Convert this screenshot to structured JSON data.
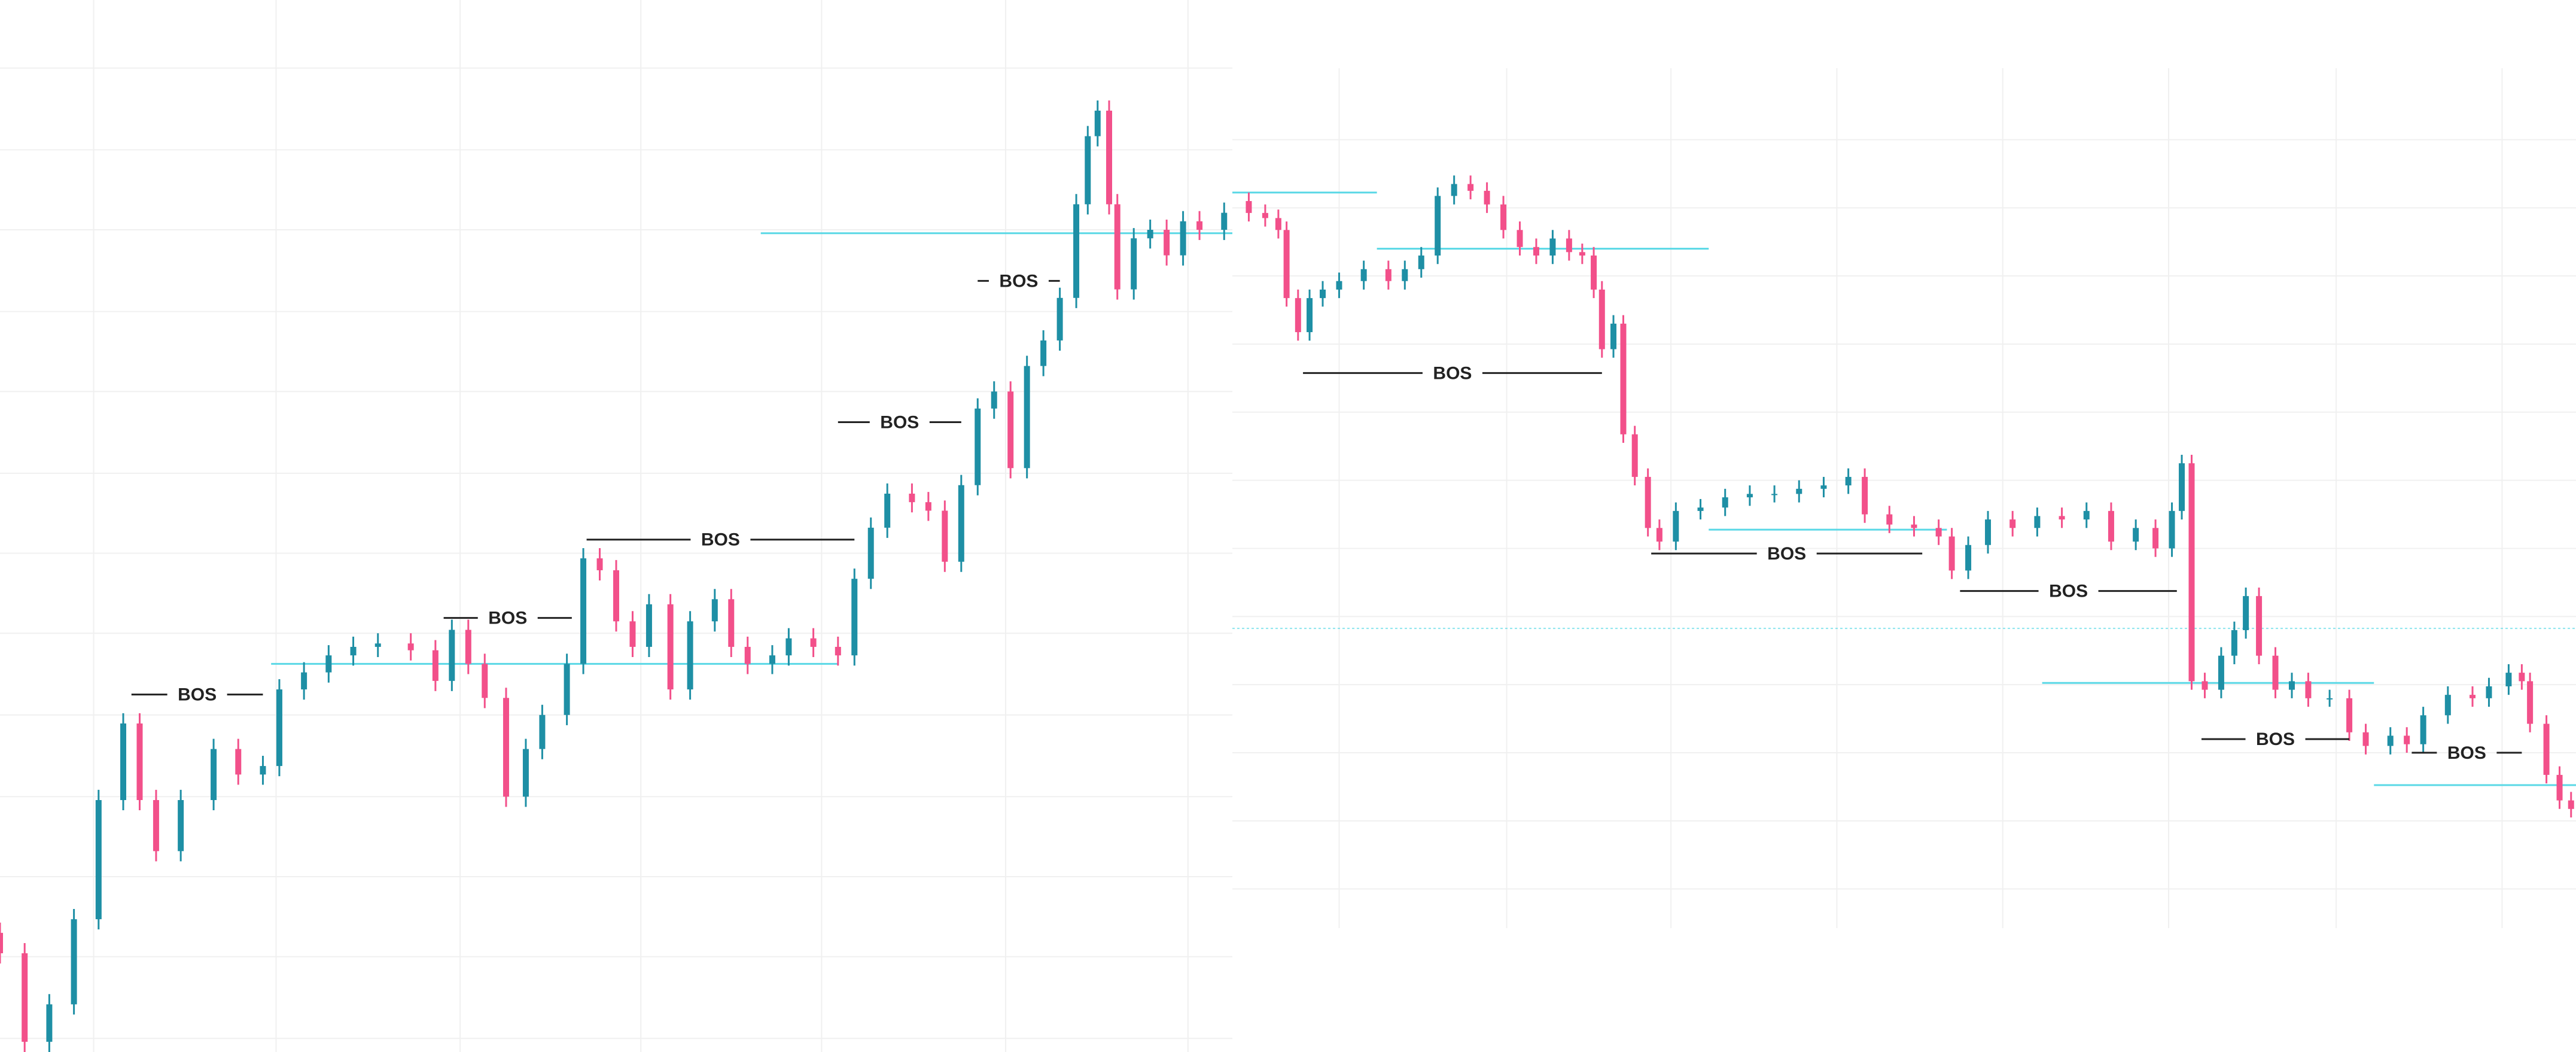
{
  "chart_data": [
    {
      "type": "candlestick",
      "up_color": "#1e8fa5",
      "down_color": "#f2508a",
      "level_color": "#5ad8e6",
      "grid": true,
      "xlim": [
        0,
        750
      ],
      "ylim": [
        0,
        618
      ],
      "xticks": [
        57,
        168,
        280,
        390,
        500,
        612,
        723
      ],
      "yticks": [
        578,
        530,
        483,
        435,
        388,
        340,
        293,
        246,
        198,
        150,
        103,
        56,
        8
      ],
      "x": [
        0,
        15,
        30,
        45,
        60,
        75,
        85,
        95,
        110,
        130,
        145,
        160,
        170,
        185,
        200,
        215,
        230,
        250,
        265,
        275,
        285,
        295,
        308,
        320,
        330,
        345,
        355,
        365,
        375,
        385,
        395,
        408,
        420,
        435,
        445,
        455,
        470,
        480,
        495,
        510,
        520,
        530,
        540,
        555,
        565,
        575,
        585,
        595,
        605,
        615,
        625,
        635,
        645,
        655,
        662,
        668,
        675,
        680,
        690,
        700,
        710,
        720,
        730,
        745
      ],
      "open": [
        70,
        58,
        6,
        28,
        78,
        148,
        193,
        148,
        118,
        148,
        178,
        163,
        168,
        213,
        223,
        233,
        238,
        240,
        236,
        218,
        248,
        228,
        208,
        150,
        178,
        198,
        228,
        290,
        283,
        253,
        238,
        263,
        213,
        253,
        266,
        238,
        228,
        233,
        243,
        238,
        233,
        278,
        308,
        328,
        323,
        318,
        288,
        333,
        378,
        388,
        343,
        403,
        418,
        443,
        498,
        538,
        553,
        498,
        448,
        478,
        483,
        468,
        488,
        483
      ],
      "high": [
        76,
        64,
        34,
        84,
        154,
        199,
        199,
        154,
        154,
        184,
        184,
        174,
        219,
        229,
        239,
        244,
        246,
        246,
        242,
        254,
        254,
        234,
        214,
        184,
        204,
        234,
        296,
        296,
        289,
        259,
        269,
        269,
        259,
        272,
        272,
        244,
        239,
        249,
        249,
        244,
        284,
        314,
        334,
        334,
        329,
        324,
        339,
        384,
        394,
        394,
        409,
        424,
        449,
        504,
        544,
        559,
        559,
        504,
        484,
        489,
        489,
        494,
        494,
        499
      ],
      "low": [
        52,
        0,
        0,
        22,
        72,
        142,
        142,
        112,
        112,
        142,
        157,
        157,
        162,
        207,
        217,
        227,
        232,
        230,
        212,
        212,
        222,
        202,
        144,
        144,
        172,
        192,
        222,
        277,
        247,
        232,
        232,
        207,
        207,
        247,
        232,
        222,
        222,
        227,
        232,
        227,
        227,
        272,
        302,
        317,
        312,
        282,
        282,
        327,
        372,
        337,
        337,
        397,
        412,
        437,
        492,
        532,
        492,
        442,
        442,
        472,
        462,
        462,
        477,
        477
      ],
      "close": [
        58,
        6,
        28,
        78,
        148,
        193,
        148,
        118,
        148,
        178,
        163,
        168,
        213,
        223,
        233,
        238,
        240,
        236,
        218,
        248,
        228,
        208,
        150,
        178,
        198,
        228,
        290,
        283,
        253,
        238,
        263,
        213,
        253,
        266,
        238,
        228,
        233,
        243,
        238,
        233,
        278,
        308,
        328,
        323,
        318,
        288,
        333,
        378,
        388,
        343,
        403,
        418,
        443,
        498,
        538,
        553,
        498,
        448,
        478,
        483,
        468,
        488,
        483,
        493
      ],
      "levels": [
        {
          "value": 481,
          "x": [
            463,
            750
          ]
        },
        {
          "value": 228,
          "x": [
            165,
            510
          ]
        }
      ],
      "annotations": [
        {
          "text": "BOS",
          "value": 210,
          "x": [
            80,
            160
          ]
        },
        {
          "text": "BOS",
          "value": 255,
          "x": [
            270,
            348
          ]
        },
        {
          "text": "BOS",
          "value": 301,
          "x": [
            357,
            520
          ]
        },
        {
          "text": "BOS",
          "value": 370,
          "x": [
            510,
            585
          ]
        },
        {
          "text": "BOS",
          "value": 453,
          "x": [
            595,
            645
          ]
        }
      ]
    },
    {
      "type": "candlestick",
      "up_color": "#1e8fa5",
      "down_color": "#f2508a",
      "level_color": "#5ad8e6",
      "grid": true,
      "xlim": [
        750,
        1568
      ],
      "ylim": [
        73,
        578
      ],
      "xticks": [
        815,
        917,
        1017,
        1118,
        1219,
        1320,
        1422,
        1523
      ],
      "yticks": [
        536,
        496,
        456,
        416,
        376,
        336,
        296,
        256,
        216,
        176,
        136,
        96
      ],
      "x": [
        760,
        770,
        778,
        783,
        790,
        797,
        805,
        815,
        830,
        845,
        855,
        865,
        875,
        885,
        895,
        905,
        915,
        925,
        935,
        945,
        955,
        963,
        970,
        975,
        982,
        988,
        995,
        1003,
        1010,
        1020,
        1035,
        1050,
        1065,
        1080,
        1095,
        1110,
        1125,
        1135,
        1150,
        1165,
        1180,
        1188,
        1198,
        1210,
        1225,
        1240,
        1255,
        1270,
        1285,
        1300,
        1312,
        1322,
        1328,
        1334,
        1342,
        1352,
        1360,
        1367,
        1375,
        1385,
        1395,
        1405,
        1418,
        1430,
        1440,
        1455,
        1465,
        1475,
        1490,
        1505,
        1515,
        1527,
        1535,
        1540,
        1550,
        1558,
        1565
      ],
      "open": [
        500,
        493,
        490,
        483,
        443,
        423,
        443,
        448,
        453,
        460,
        453,
        460,
        468,
        503,
        510,
        506,
        498,
        483,
        473,
        468,
        478,
        470,
        468,
        448,
        413,
        428,
        363,
        338,
        308,
        300,
        318,
        320,
        326,
        328,
        328,
        331,
        333,
        338,
        316,
        310,
        308,
        303,
        283,
        298,
        313,
        308,
        315,
        313,
        318,
        300,
        308,
        296,
        318,
        346,
        218,
        213,
        233,
        248,
        268,
        233,
        213,
        218,
        208,
        208,
        188,
        180,
        186,
        181,
        198,
        210,
        208,
        215,
        223,
        218,
        193,
        163,
        148
      ],
      "high": [
        505,
        498,
        495,
        488,
        448,
        448,
        453,
        458,
        465,
        465,
        465,
        473,
        508,
        515,
        515,
        511,
        503,
        488,
        478,
        483,
        483,
        475,
        473,
        453,
        433,
        433,
        368,
        343,
        313,
        323,
        325,
        331,
        333,
        333,
        336,
        338,
        343,
        343,
        321,
        315,
        313,
        308,
        303,
        318,
        318,
        320,
        320,
        323,
        323,
        313,
        313,
        323,
        351,
        351,
        223,
        238,
        253,
        273,
        273,
        238,
        223,
        223,
        213,
        213,
        193,
        191,
        191,
        203,
        215,
        215,
        220,
        228,
        228,
        223,
        198,
        168,
        153
      ],
      "low": [
        488,
        485,
        478,
        438,
        418,
        418,
        438,
        443,
        448,
        448,
        448,
        455,
        463,
        498,
        501,
        493,
        478,
        468,
        463,
        463,
        465,
        463,
        443,
        408,
        408,
        358,
        333,
        303,
        295,
        295,
        313,
        315,
        321,
        323,
        323,
        326,
        328,
        311,
        305,
        303,
        298,
        278,
        278,
        293,
        303,
        303,
        308,
        308,
        295,
        295,
        291,
        291,
        313,
        213,
        208,
        208,
        228,
        243,
        228,
        208,
        208,
        203,
        203,
        183,
        175,
        175,
        176,
        176,
        193,
        203,
        203,
        210,
        213,
        188,
        158,
        143,
        138
      ],
      "close": [
        493,
        490,
        483,
        443,
        423,
        443,
        448,
        453,
        460,
        453,
        460,
        468,
        503,
        510,
        506,
        498,
        483,
        473,
        468,
        478,
        470,
        468,
        448,
        413,
        428,
        363,
        338,
        308,
        300,
        318,
        320,
        326,
        328,
        328,
        331,
        333,
        338,
        316,
        310,
        308,
        303,
        283,
        298,
        313,
        308,
        315,
        313,
        318,
        300,
        308,
        296,
        318,
        346,
        218,
        213,
        233,
        248,
        268,
        233,
        213,
        218,
        208,
        208,
        188,
        180,
        186,
        181,
        198,
        210,
        208,
        215,
        223,
        218,
        193,
        163,
        148,
        143
      ],
      "levels": [
        {
          "value": 505,
          "x": [
            750,
            838
          ]
        },
        {
          "value": 472,
          "x": [
            838,
            1040
          ]
        },
        {
          "value": 307,
          "x": [
            1040,
            1185
          ]
        },
        {
          "value": 249,
          "x": [
            750,
            1568
          ],
          "dashed": true
        },
        {
          "value": 217,
          "x": [
            1243,
            1445
          ]
        },
        {
          "value": 157,
          "x": [
            1445,
            1568
          ]
        }
      ],
      "annotations": [
        {
          "text": "BOS",
          "value": 399,
          "x": [
            793,
            975
          ]
        },
        {
          "text": "BOS",
          "value": 293,
          "x": [
            1005,
            1170
          ]
        },
        {
          "text": "BOS",
          "value": 271,
          "x": [
            1193,
            1325
          ]
        },
        {
          "text": "BOS",
          "value": 184,
          "x": [
            1340,
            1430
          ]
        },
        {
          "text": "BOS",
          "value": 176,
          "x": [
            1468,
            1535
          ]
        }
      ]
    }
  ]
}
